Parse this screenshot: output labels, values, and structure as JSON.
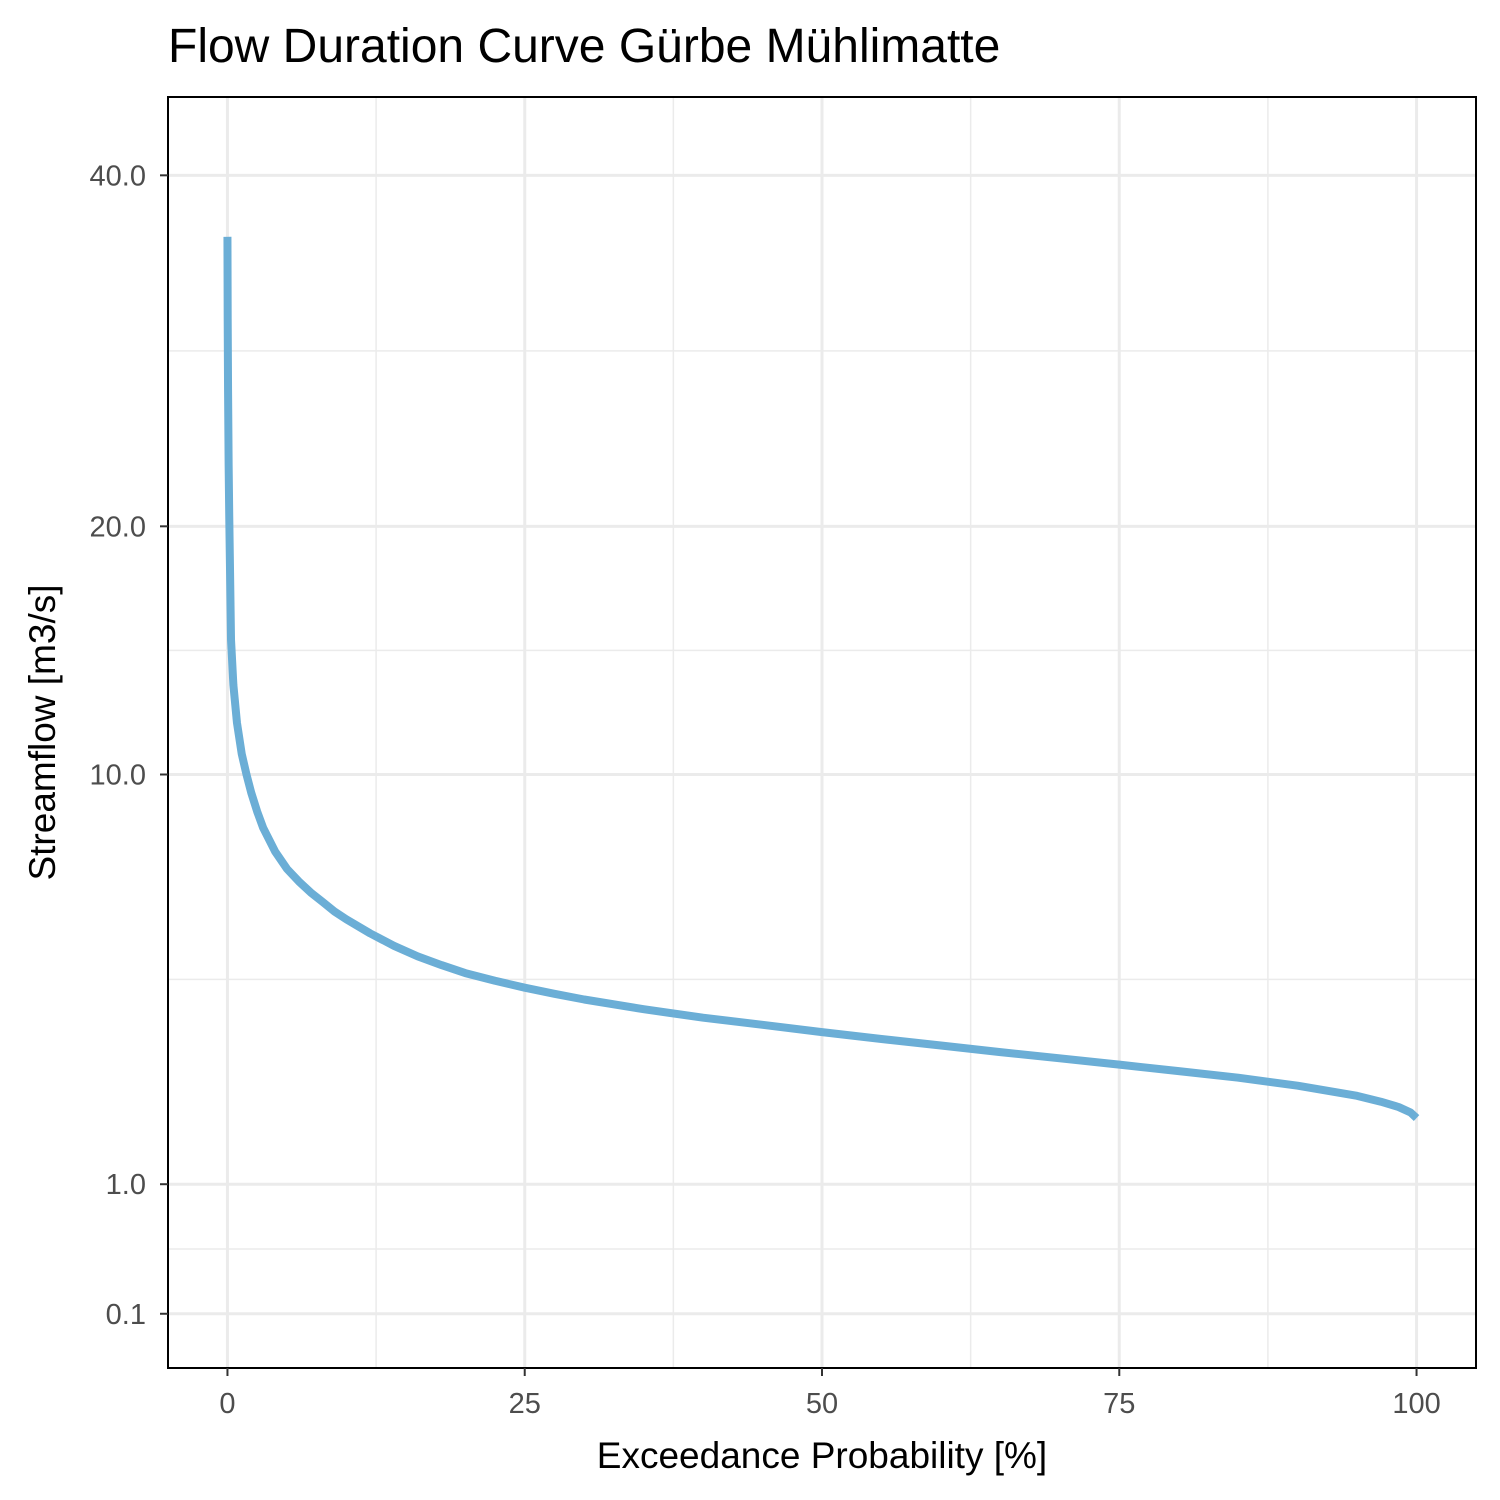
{
  "chart_data": {
    "type": "line",
    "title": "Flow Duration Curve Gürbe Mühlimatte",
    "xlabel": "Exceedance Probability [%]",
    "ylabel": "Streamflow [m3/s]",
    "xlim": [
      -5,
      105
    ],
    "x_scale": "linear",
    "y_scale": "sqrt",
    "y_scale_note": "square-root transformed y axis",
    "xticks": [
      0,
      25,
      50,
      75,
      100
    ],
    "xtick_labels": [
      "0",
      "25",
      "50",
      "75",
      "100"
    ],
    "yticks": [
      0.1,
      1.0,
      10.0,
      20.0,
      40.0
    ],
    "ytick_labels": [
      "0.1",
      "1.0",
      "10.0",
      "20.0",
      "40.0"
    ],
    "grid": true,
    "line_color": "#6baed6",
    "series": [
      {
        "x": [
          0,
          0.02,
          0.05,
          0.1,
          0.15,
          0.2,
          0.3,
          0.5,
          0.8,
          1.2,
          1.6,
          2,
          2.5,
          3,
          4,
          5,
          6,
          7,
          8,
          9,
          10,
          12,
          14,
          16,
          18,
          20,
          22.5,
          25,
          27.5,
          30,
          35,
          40,
          45,
          50,
          55,
          60,
          65,
          70,
          75,
          80,
          85,
          90,
          95,
          97,
          98.5,
          99.5,
          100
        ],
        "y": [
          36.0,
          31.0,
          27.0,
          23.0,
          20.5,
          18.6,
          15.0,
          13.2,
          11.8,
          10.7,
          10.0,
          9.4,
          8.8,
          8.3,
          7.6,
          7.1,
          6.75,
          6.45,
          6.2,
          5.95,
          5.75,
          5.4,
          5.1,
          4.85,
          4.65,
          4.47,
          4.3,
          4.15,
          4.02,
          3.9,
          3.7,
          3.53,
          3.39,
          3.25,
          3.12,
          3.0,
          2.88,
          2.77,
          2.66,
          2.55,
          2.44,
          2.31,
          2.15,
          2.06,
          1.98,
          1.9,
          1.82
        ]
      }
    ]
  }
}
